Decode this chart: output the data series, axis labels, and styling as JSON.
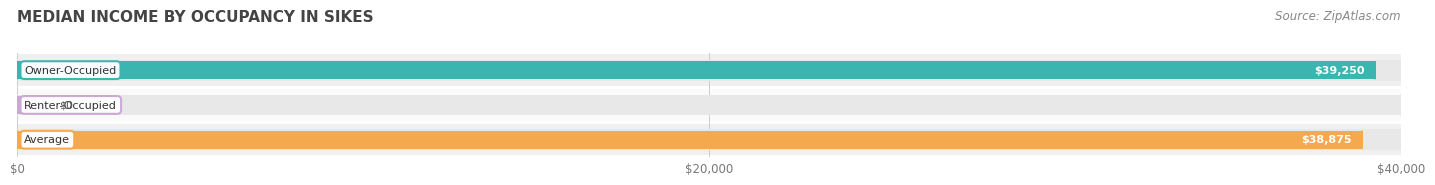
{
  "title": "MEDIAN INCOME BY OCCUPANCY IN SIKES",
  "source": "Source: ZipAtlas.com",
  "categories": [
    "Owner-Occupied",
    "Renter-Occupied",
    "Average"
  ],
  "values": [
    39250,
    0,
    38875
  ],
  "bar_colors": [
    "#3ab5b0",
    "#c9a8d4",
    "#f5a94e"
  ],
  "bar_bg_color": "#e8e8e8",
  "label_colors": [
    "#ffffff",
    "#666666",
    "#ffffff"
  ],
  "value_labels": [
    "$39,250",
    "$0",
    "$38,875"
  ],
  "xlim": [
    0,
    40000
  ],
  "xticks": [
    0,
    20000,
    40000
  ],
  "xtick_labels": [
    "$0",
    "$20,000",
    "$40,000"
  ],
  "title_fontsize": 11,
  "source_fontsize": 8.5,
  "bar_height": 0.52,
  "fig_bg_color": "#ffffff",
  "axes_bg_color": "#f5f5f5",
  "renter_small_value": 800
}
